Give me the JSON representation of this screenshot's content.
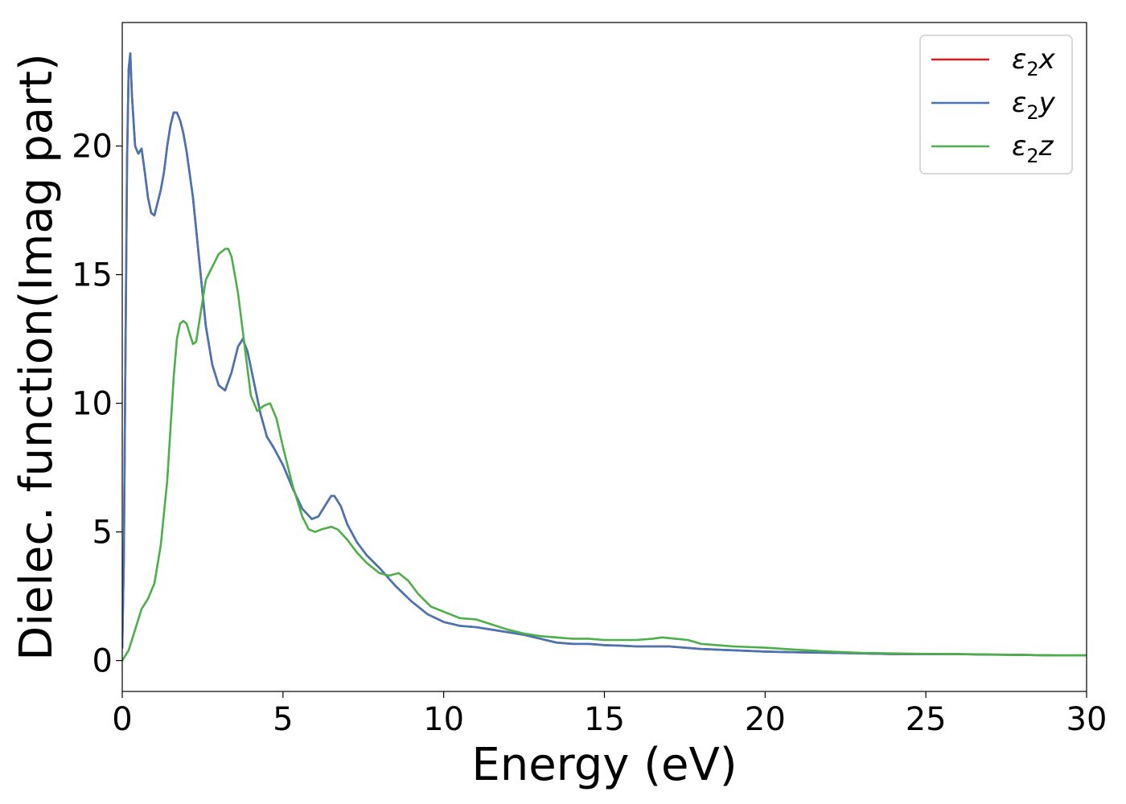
{
  "chart_data": {
    "type": "line",
    "title": "",
    "xlabel": "Energy (eV)",
    "ylabel": "Dielec. function(Imag part)",
    "xlim": [
      0,
      30
    ],
    "ylim": [
      -1.2,
      24.8
    ],
    "xticks": [
      0,
      5,
      10,
      15,
      20,
      25,
      30
    ],
    "yticks": [
      0,
      5,
      10,
      15,
      20
    ],
    "grid": false,
    "legend_position": "top-right",
    "series": [
      {
        "name": "ε2x",
        "legend_base": "ε",
        "legend_sub": "2",
        "legend_suffix": "x",
        "color": "#e41a1c",
        "x": [
          0,
          0.05,
          0.1,
          0.15,
          0.2,
          0.25,
          0.3,
          0.4,
          0.5,
          0.6,
          0.7,
          0.8,
          0.9,
          1.0,
          1.1,
          1.2,
          1.3,
          1.4,
          1.5,
          1.6,
          1.7,
          1.8,
          1.9,
          2.0,
          2.2,
          2.4,
          2.6,
          2.8,
          3.0,
          3.2,
          3.4,
          3.6,
          3.75,
          3.9,
          4.1,
          4.3,
          4.5,
          4.7,
          5.0,
          5.3,
          5.6,
          5.9,
          6.1,
          6.3,
          6.5,
          6.6,
          6.8,
          7.0,
          7.3,
          7.6,
          8.0,
          8.5,
          9.0,
          9.5,
          10.0,
          10.5,
          11.0,
          11.5,
          12.0,
          12.5,
          13.0,
          13.5,
          14.0,
          14.5,
          15.0,
          15.5,
          16.0,
          16.5,
          17.0,
          17.5,
          18.0,
          19.0,
          20.0,
          21.0,
          22.0,
          23.0,
          24.0,
          25.0,
          26.0,
          27.0,
          28.0,
          29.0,
          30.0
        ],
        "y": [
          0.5,
          4.0,
          12.0,
          19.5,
          23.0,
          23.6,
          22.0,
          20.0,
          19.7,
          19.9,
          19.0,
          18.0,
          17.4,
          17.3,
          17.8,
          18.3,
          19.0,
          20.0,
          20.8,
          21.3,
          21.3,
          21.0,
          20.5,
          19.8,
          18.0,
          15.5,
          13.0,
          11.5,
          10.7,
          10.5,
          11.2,
          12.2,
          12.5,
          12.0,
          10.8,
          9.6,
          8.7,
          8.3,
          7.6,
          6.7,
          5.9,
          5.5,
          5.6,
          6.0,
          6.4,
          6.4,
          6.0,
          5.3,
          4.6,
          4.1,
          3.6,
          2.9,
          2.3,
          1.8,
          1.5,
          1.35,
          1.3,
          1.2,
          1.1,
          1.0,
          0.85,
          0.7,
          0.65,
          0.65,
          0.6,
          0.58,
          0.55,
          0.55,
          0.55,
          0.5,
          0.45,
          0.4,
          0.35,
          0.32,
          0.3,
          0.28,
          0.25,
          0.25,
          0.25,
          0.23,
          0.22,
          0.2,
          0.2
        ]
      },
      {
        "name": "ε2y",
        "legend_base": "ε",
        "legend_sub": "2",
        "legend_suffix": "y",
        "color": "#4575b4",
        "x": [
          0,
          0.05,
          0.1,
          0.15,
          0.2,
          0.25,
          0.3,
          0.4,
          0.5,
          0.6,
          0.7,
          0.8,
          0.9,
          1.0,
          1.1,
          1.2,
          1.3,
          1.4,
          1.5,
          1.6,
          1.7,
          1.8,
          1.9,
          2.0,
          2.2,
          2.4,
          2.6,
          2.8,
          3.0,
          3.2,
          3.4,
          3.6,
          3.75,
          3.9,
          4.1,
          4.3,
          4.5,
          4.7,
          5.0,
          5.3,
          5.6,
          5.9,
          6.1,
          6.3,
          6.5,
          6.6,
          6.8,
          7.0,
          7.3,
          7.6,
          8.0,
          8.5,
          9.0,
          9.5,
          10.0,
          10.5,
          11.0,
          11.5,
          12.0,
          12.5,
          13.0,
          13.5,
          14.0,
          14.5,
          15.0,
          15.5,
          16.0,
          16.5,
          17.0,
          17.5,
          18.0,
          19.0,
          20.0,
          21.0,
          22.0,
          23.0,
          24.0,
          25.0,
          26.0,
          27.0,
          28.0,
          29.0,
          30.0
        ],
        "y": [
          0.5,
          4.0,
          12.0,
          19.5,
          23.0,
          23.6,
          22.0,
          20.0,
          19.7,
          19.9,
          19.0,
          18.0,
          17.4,
          17.3,
          17.8,
          18.3,
          19.0,
          20.0,
          20.8,
          21.3,
          21.3,
          21.0,
          20.5,
          19.8,
          18.0,
          15.5,
          13.0,
          11.5,
          10.7,
          10.5,
          11.2,
          12.2,
          12.5,
          12.0,
          10.8,
          9.6,
          8.7,
          8.3,
          7.6,
          6.7,
          5.9,
          5.5,
          5.6,
          6.0,
          6.4,
          6.4,
          6.0,
          5.3,
          4.6,
          4.1,
          3.6,
          2.9,
          2.3,
          1.8,
          1.5,
          1.35,
          1.3,
          1.2,
          1.1,
          1.0,
          0.85,
          0.7,
          0.65,
          0.65,
          0.6,
          0.58,
          0.55,
          0.55,
          0.55,
          0.5,
          0.45,
          0.4,
          0.35,
          0.32,
          0.3,
          0.28,
          0.25,
          0.25,
          0.25,
          0.23,
          0.22,
          0.2,
          0.2
        ]
      },
      {
        "name": "ε2z",
        "legend_base": "ε",
        "legend_sub": "2",
        "legend_suffix": "z",
        "color": "#4daf4a",
        "x": [
          0,
          0.2,
          0.4,
          0.6,
          0.8,
          1.0,
          1.2,
          1.4,
          1.5,
          1.6,
          1.7,
          1.8,
          1.9,
          2.0,
          2.1,
          2.2,
          2.3,
          2.4,
          2.5,
          2.6,
          2.8,
          3.0,
          3.2,
          3.3,
          3.4,
          3.6,
          3.8,
          4.0,
          4.2,
          4.4,
          4.6,
          4.8,
          5.0,
          5.3,
          5.6,
          5.8,
          6.0,
          6.2,
          6.5,
          6.7,
          7.0,
          7.3,
          7.6,
          8.0,
          8.3,
          8.6,
          8.9,
          9.2,
          9.6,
          10.0,
          10.5,
          11.0,
          11.5,
          12.0,
          12.5,
          13.0,
          13.5,
          14.0,
          14.5,
          15.0,
          15.5,
          16.0,
          16.5,
          16.8,
          17.2,
          17.6,
          18.0,
          19.0,
          20.0,
          21.0,
          22.0,
          23.0,
          24.0,
          25.0,
          26.0,
          27.0,
          28.0,
          29.0,
          30.0
        ],
        "y": [
          0.0,
          0.4,
          1.2,
          2.0,
          2.4,
          3.0,
          4.5,
          7.0,
          9.0,
          11.0,
          12.5,
          13.1,
          13.2,
          13.1,
          12.7,
          12.3,
          12.4,
          13.2,
          14.0,
          14.8,
          15.3,
          15.8,
          16.0,
          16.0,
          15.7,
          14.3,
          12.3,
          10.3,
          9.7,
          9.9,
          10.0,
          9.4,
          8.3,
          6.8,
          5.6,
          5.1,
          5.0,
          5.1,
          5.2,
          5.1,
          4.7,
          4.2,
          3.8,
          3.4,
          3.3,
          3.4,
          3.1,
          2.6,
          2.1,
          1.9,
          1.65,
          1.6,
          1.4,
          1.2,
          1.05,
          0.95,
          0.9,
          0.85,
          0.85,
          0.8,
          0.8,
          0.8,
          0.85,
          0.9,
          0.85,
          0.8,
          0.65,
          0.55,
          0.5,
          0.42,
          0.35,
          0.3,
          0.28,
          0.26,
          0.25,
          0.24,
          0.22,
          0.2,
          0.2
        ]
      }
    ]
  }
}
